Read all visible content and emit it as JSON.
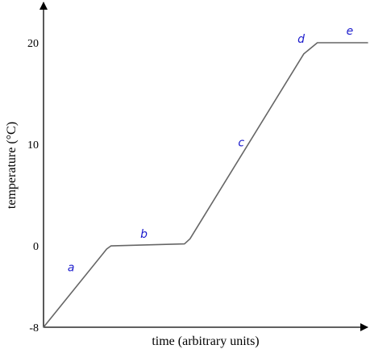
{
  "chart_data": {
    "type": "line",
    "xlabel": "time (arbitrary units)",
    "ylabel": "temperature (°C)",
    "xlim": [
      0,
      100
    ],
    "ylim": [
      -8,
      24
    ],
    "y_ticks": [
      {
        "value": -8,
        "label": "-8"
      },
      {
        "value": 0,
        "label": "0"
      },
      {
        "value": 10,
        "label": "10"
      },
      {
        "value": 20,
        "label": "20"
      }
    ],
    "grid": false,
    "line_color": "#666666",
    "label_color": "#1a1acc",
    "series": [
      {
        "points": [
          {
            "x": 0,
            "y": -8
          },
          {
            "x": 19.5,
            "y": -0.3
          },
          {
            "x": 20.8,
            "y": 0
          },
          {
            "x": 43.5,
            "y": 0.2
          },
          {
            "x": 45.2,
            "y": 0.7
          },
          {
            "x": 80.3,
            "y": 18.9
          },
          {
            "x": 84.5,
            "y": 20
          },
          {
            "x": 100,
            "y": 20
          }
        ]
      }
    ],
    "annotations": [
      {
        "text": "a",
        "x": 8.5,
        "y": -2.5
      },
      {
        "text": "b",
        "x": 31,
        "y": 0.8
      },
      {
        "text": "c",
        "x": 61,
        "y": 9.8
      },
      {
        "text": "d",
        "x": 79.5,
        "y": 20
      },
      {
        "text": "e",
        "x": 94.5,
        "y": 20.8
      }
    ]
  }
}
